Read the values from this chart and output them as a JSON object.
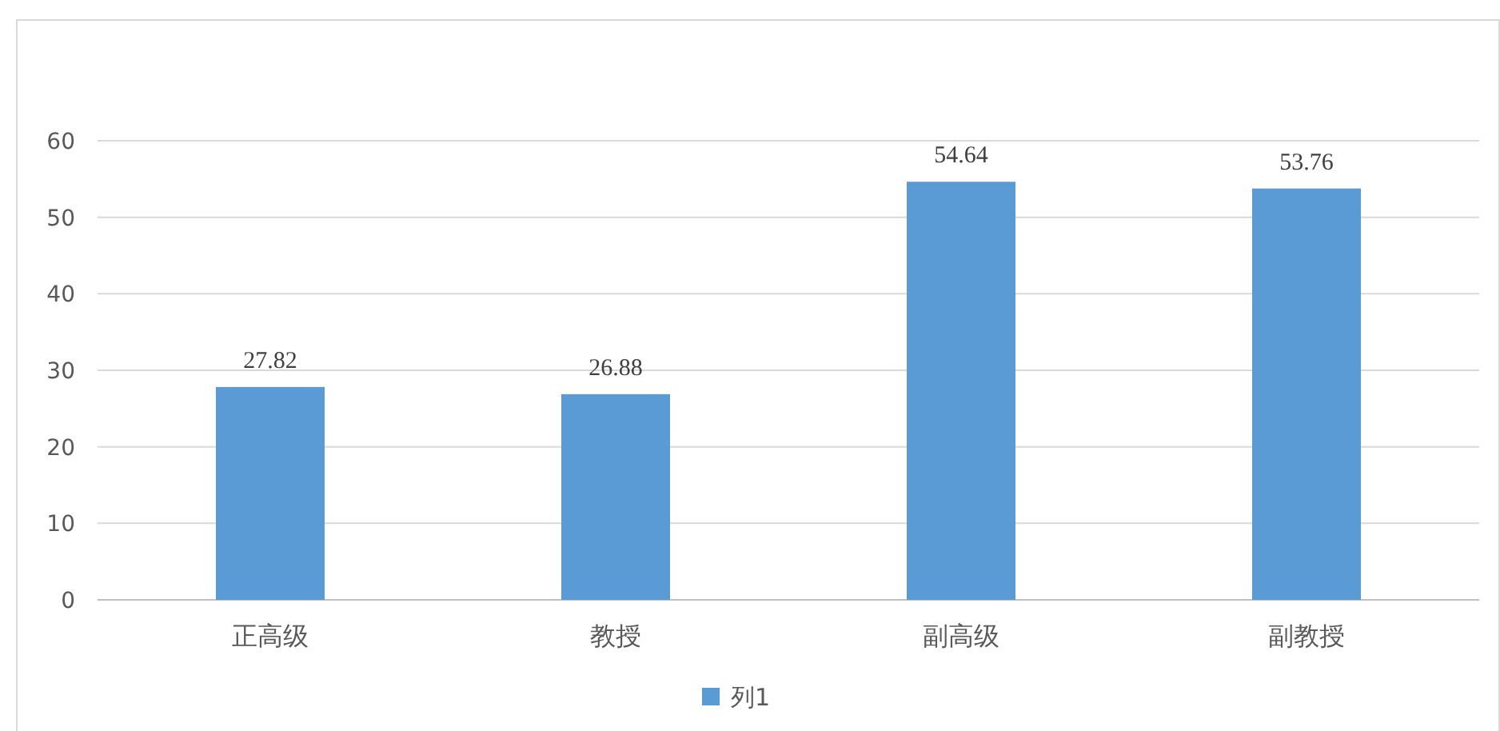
{
  "chart_data": {
    "type": "bar",
    "categories": [
      "正高级",
      "教授",
      "副高级",
      "副教授"
    ],
    "series": [
      {
        "name": "列1",
        "color": "#5b9bd5",
        "values": [
          27.82,
          26.88,
          54.64,
          53.76
        ]
      }
    ],
    "ylim": [
      0,
      60
    ],
    "yticks": [
      0,
      10,
      20,
      30,
      40,
      50,
      60
    ],
    "grid": "y",
    "legend": "bottom",
    "data_labels": true
  }
}
